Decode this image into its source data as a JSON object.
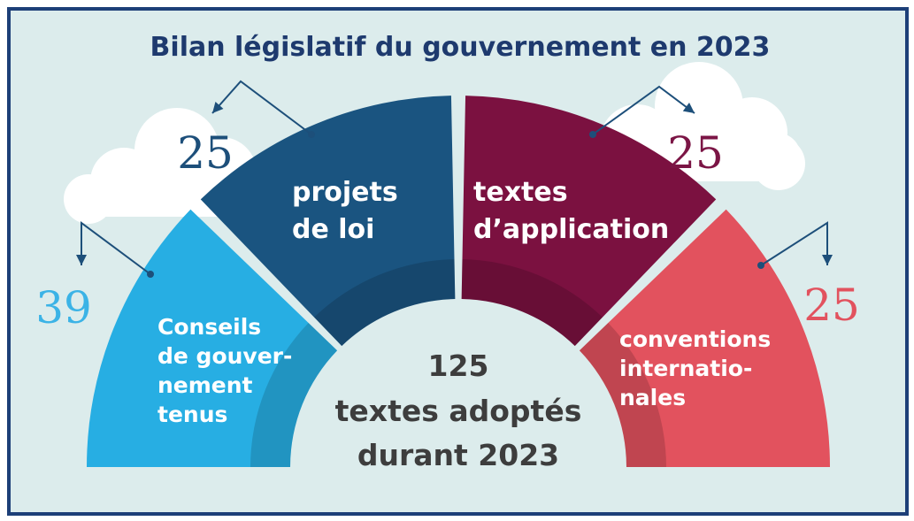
{
  "chart_data": {
    "type": "semicircle-infographic",
    "title": "Bilan législatif du gouvernement en 2023",
    "total": {
      "value": "125",
      "lines": [
        "textes adoptés",
        "durant 2023"
      ]
    },
    "categories": [
      {
        "value": 39,
        "label_lines": [
          "Conseils",
          "de gouver-",
          "nement",
          "tenus"
        ],
        "color": "#27aee3"
      },
      {
        "value": 25,
        "label_lines": [
          "projets",
          "de loi"
        ],
        "color": "#1a5480"
      },
      {
        "value": 25,
        "label_lines": [
          "textes",
          "d’application"
        ],
        "color": "#7b1140"
      },
      {
        "value": 25,
        "label_lines": [
          "conventions",
          "internatio-",
          "nales"
        ],
        "color": "#e2525e"
      }
    ],
    "number_colors": [
      "#3bb3e6",
      "#1d4f7a",
      "#7b1545",
      "#e2525e"
    ]
  }
}
